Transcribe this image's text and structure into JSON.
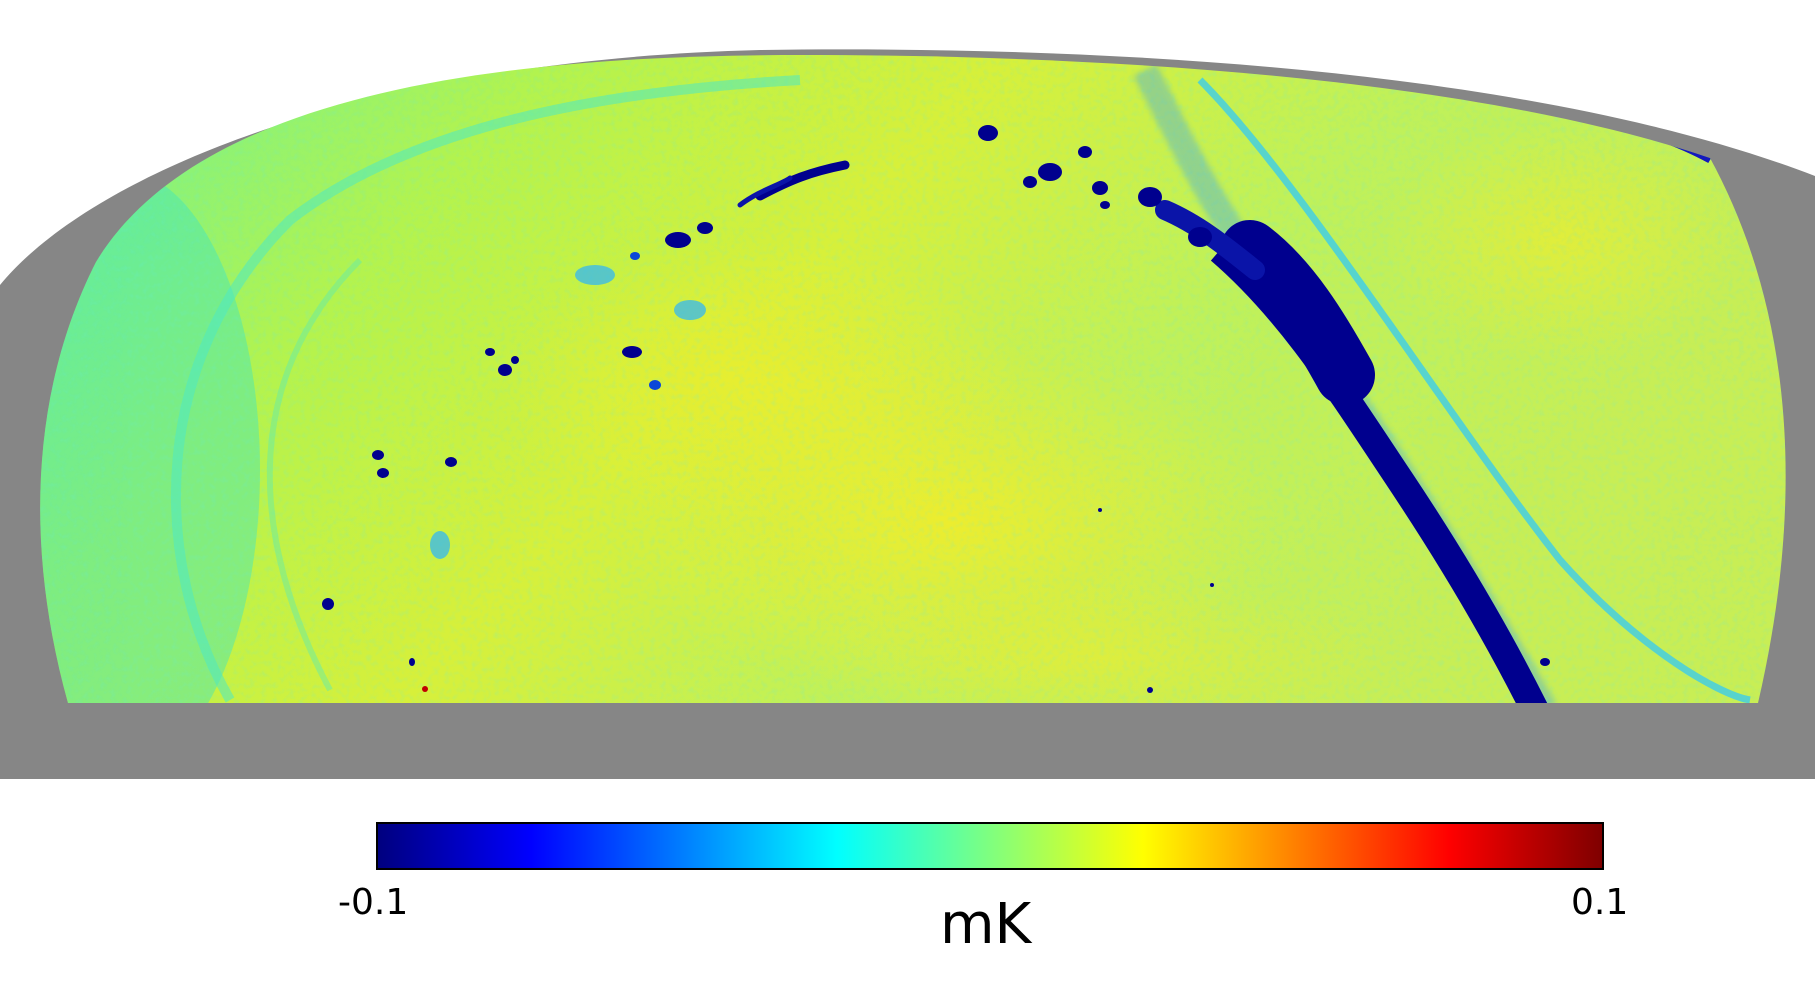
{
  "map": {
    "projection": "mollweide-partial",
    "unit": "mK",
    "mask_color": "#868686",
    "background_color": "#ffffff",
    "features": [
      "galactic-plane-band",
      "compact-sources",
      "scan-ring-artifacts"
    ]
  },
  "colorbar": {
    "min_label": "-0.1",
    "max_label": "0.1",
    "unit_label": "mK",
    "colormap": "jet",
    "stops": [
      "#00007f",
      "#0000ff",
      "#007fff",
      "#00ffff",
      "#7fff7f",
      "#ffff00",
      "#ff7f00",
      "#ff0000",
      "#7f0000"
    ]
  }
}
